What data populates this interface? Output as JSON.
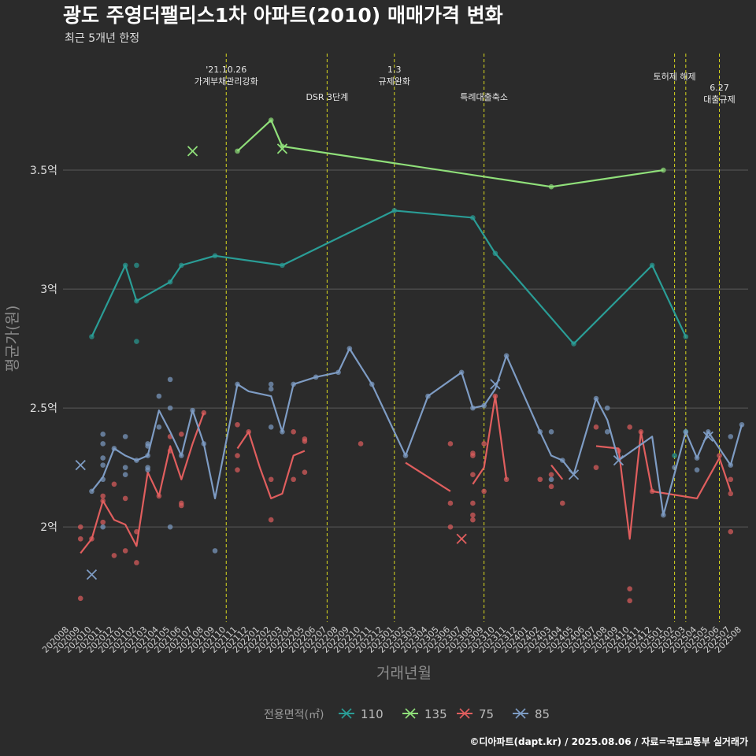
{
  "chart_data": {
    "type": "line",
    "title": "광도 주영더팰리스1차 아파트(2010) 매매가격 변화",
    "subtitle": "최근 5개년 한정",
    "xlabel": "거래년월",
    "ylabel": "평균가(원)",
    "ylim": [
      1.6,
      4.0
    ],
    "yticks": [
      2.0,
      2.5,
      3.0,
      3.5
    ],
    "ytick_labels": [
      "2억",
      "2.5억",
      "3억",
      "3.5억"
    ],
    "categories": [
      "202008",
      "202009",
      "202010",
      "202011",
      "202012",
      "202101",
      "202102",
      "202103",
      "202104",
      "202105",
      "202106",
      "202107",
      "202108",
      "202109",
      "202110",
      "202111",
      "202112",
      "202201",
      "202202",
      "202203",
      "202204",
      "202205",
      "202206",
      "202207",
      "202208",
      "202209",
      "202210",
      "202211",
      "202212",
      "202301",
      "202302",
      "202303",
      "202304",
      "202305",
      "202306",
      "202307",
      "202308",
      "202309",
      "202310",
      "202311",
      "202312",
      "202401",
      "202402",
      "202403",
      "202404",
      "202405",
      "202406",
      "202407",
      "202408",
      "202409",
      "202410",
      "202411",
      "202412",
      "202501",
      "202502",
      "202503",
      "202504",
      "202505",
      "202506",
      "202507",
      "202508"
    ],
    "grid": true,
    "legend_position": "bottom",
    "legend_title": "전용면적(㎡)",
    "events": [
      {
        "x": "202110",
        "label": "'21.10.26\n가계부채관리강화",
        "row": 0
      },
      {
        "x": "202207",
        "label": "DSR 3단계",
        "row": 2
      },
      {
        "x": "202301",
        "label": "1.3\n규제완화",
        "row": 0
      },
      {
        "x": "202309",
        "label": "특례대출축소",
        "row": 2
      },
      {
        "x": "202502",
        "label": "토허제 해제",
        "row": 1
      },
      {
        "x": "202503",
        "label": "",
        "row": 1
      },
      {
        "x": "202506",
        "label": "6.27\n대출규제",
        "row": 2
      }
    ],
    "series": [
      {
        "name": "110",
        "color": "#2a9d96",
        "line": [
          [
            "202010",
            2.8
          ],
          [
            "202101",
            3.1
          ],
          [
            "202102",
            2.95
          ],
          [
            "202105",
            3.03
          ],
          [
            "202106",
            3.1
          ],
          [
            "202109",
            3.14
          ],
          [
            "202203",
            3.1
          ],
          [
            "202301",
            3.33
          ],
          [
            "202308",
            3.3
          ],
          [
            "202310",
            3.15
          ],
          [
            "202405",
            2.77
          ],
          [
            "202412",
            3.1
          ],
          [
            "202503",
            2.8
          ]
        ],
        "points": [
          [
            "202010",
            2.8
          ],
          [
            "202101",
            3.1
          ],
          [
            "202102",
            3.1
          ],
          [
            "202102",
            2.78
          ],
          [
            "202102",
            2.95
          ],
          [
            "202105",
            3.03
          ],
          [
            "202106",
            3.1
          ],
          [
            "202109",
            3.14
          ],
          [
            "202203",
            3.1
          ],
          [
            "202301",
            3.33
          ],
          [
            "202308",
            3.3
          ],
          [
            "202310",
            3.15
          ],
          [
            "202405",
            2.77
          ],
          [
            "202412",
            3.1
          ],
          [
            "202503",
            2.8
          ],
          [
            "202502",
            2.3
          ],
          [
            "202503",
            2.4
          ]
        ],
        "x_marks": []
      },
      {
        "name": "135",
        "color": "#90e07a",
        "line": [
          [
            "202111",
            3.58
          ],
          [
            "202202",
            3.71
          ],
          [
            "202203",
            3.6
          ],
          [
            "202403",
            3.43
          ],
          [
            "202501",
            3.5
          ]
        ],
        "points": [
          [
            "202111",
            3.58
          ],
          [
            "202202",
            3.71
          ],
          [
            "202203",
            3.6
          ],
          [
            "202403",
            3.43
          ],
          [
            "202501",
            3.5
          ]
        ],
        "x_marks": [
          [
            "202107",
            3.58
          ],
          [
            "202203",
            3.59
          ]
        ]
      },
      {
        "name": "75",
        "color": "#e05e5e",
        "line": [
          [
            "202009",
            1.89
          ],
          [
            "202010",
            1.95
          ],
          [
            "202011",
            2.11
          ],
          [
            "202012",
            2.03
          ],
          [
            "202101",
            2.01
          ],
          [
            "202102",
            1.92
          ],
          [
            "202103",
            2.23
          ],
          [
            "202104",
            2.13
          ],
          [
            "202105",
            2.34
          ],
          [
            "202106",
            2.2
          ],
          [
            "202107",
            2.35
          ],
          [
            "202108",
            2.48
          ],
          null,
          [
            "202111",
            2.33
          ],
          [
            "202112",
            2.4
          ],
          [
            "202201",
            2.25
          ],
          [
            "202202",
            2.12
          ],
          [
            "202203",
            2.14
          ],
          [
            "202204",
            2.3
          ],
          [
            "202205",
            2.32
          ],
          null,
          [
            "202302",
            2.27
          ],
          [
            "202306",
            2.15
          ],
          null,
          [
            "202308",
            2.18
          ],
          [
            "202309",
            2.25
          ],
          [
            "202310",
            2.55
          ],
          [
            "202311",
            2.2
          ],
          null,
          [
            "202403",
            2.26
          ],
          [
            "202404",
            2.2
          ],
          null,
          [
            "202407",
            2.34
          ],
          [
            "202409",
            2.33
          ],
          [
            "202410",
            1.95
          ],
          [
            "202411",
            2.4
          ],
          [
            "202412",
            2.15
          ],
          [
            "202504",
            2.12
          ],
          [
            "202506",
            2.29
          ],
          [
            "202507",
            2.15
          ]
        ],
        "points": [
          [
            "202009",
            2.0
          ],
          [
            "202009",
            1.95
          ],
          [
            "202009",
            1.7
          ],
          [
            "202010",
            1.95
          ],
          [
            "202011",
            2.13
          ],
          [
            "202011",
            2.11
          ],
          [
            "202011",
            2.02
          ],
          [
            "202012",
            2.18
          ],
          [
            "202012",
            1.88
          ],
          [
            "202101",
            2.12
          ],
          [
            "202101",
            1.9
          ],
          [
            "202102",
            1.85
          ],
          [
            "202102",
            1.98
          ],
          [
            "202104",
            2.13
          ],
          [
            "202105",
            2.38
          ],
          [
            "202105",
            2.32
          ],
          [
            "202106",
            2.39
          ],
          [
            "202106",
            2.1
          ],
          [
            "202106",
            2.09
          ],
          [
            "202108",
            2.48
          ],
          [
            "202111",
            2.43
          ],
          [
            "202111",
            2.3
          ],
          [
            "202111",
            2.24
          ],
          [
            "202112",
            2.4
          ],
          [
            "202202",
            2.2
          ],
          [
            "202202",
            2.03
          ],
          [
            "202204",
            2.4
          ],
          [
            "202204",
            2.2
          ],
          [
            "202205",
            2.37
          ],
          [
            "202205",
            2.36
          ],
          [
            "202205",
            2.23
          ],
          [
            "202210",
            2.35
          ],
          [
            "202306",
            2.35
          ],
          [
            "202306",
            2.1
          ],
          [
            "202306",
            2.0
          ],
          [
            "202308",
            2.31
          ],
          [
            "202308",
            2.3
          ],
          [
            "202308",
            2.22
          ],
          [
            "202308",
            2.1
          ],
          [
            "202308",
            2.05
          ],
          [
            "202308",
            2.03
          ],
          [
            "202309",
            2.35
          ],
          [
            "202309",
            2.15
          ],
          [
            "202310",
            2.55
          ],
          [
            "202311",
            2.2
          ],
          [
            "202402",
            2.2
          ],
          [
            "202403",
            2.22
          ],
          [
            "202403",
            2.17
          ],
          [
            "202404",
            2.1
          ],
          [
            "202407",
            2.42
          ],
          [
            "202407",
            2.25
          ],
          [
            "202409",
            2.32
          ],
          [
            "202410",
            2.42
          ],
          [
            "202410",
            1.74
          ],
          [
            "202410",
            1.69
          ],
          [
            "202411",
            2.4
          ],
          [
            "202412",
            2.15
          ],
          [
            "202506",
            2.3
          ],
          [
            "202507",
            2.2
          ],
          [
            "202507",
            2.14
          ],
          [
            "202507",
            1.98
          ]
        ],
        "x_marks": [
          [
            "202307",
            1.95
          ]
        ]
      },
      {
        "name": "85",
        "color": "#7e9cc4",
        "line": [
          [
            "202010",
            2.15
          ],
          [
            "202011",
            2.21
          ],
          [
            "202012",
            2.33
          ],
          [
            "202101",
            2.3
          ],
          [
            "202102",
            2.28
          ],
          [
            "202103",
            2.3
          ],
          [
            "202104",
            2.49
          ],
          [
            "202105",
            2.4
          ],
          [
            "202106",
            2.3
          ],
          [
            "202107",
            2.49
          ],
          [
            "202108",
            2.35
          ],
          [
            "202109",
            2.12
          ],
          [
            "202111",
            2.6
          ],
          [
            "202112",
            2.57
          ],
          [
            "202202",
            2.55
          ],
          [
            "202203",
            2.4
          ],
          [
            "202204",
            2.6
          ],
          [
            "202206",
            2.63
          ],
          [
            "202208",
            2.65
          ],
          [
            "202209",
            2.75
          ],
          [
            "202211",
            2.6
          ],
          [
            "202302",
            2.3
          ],
          [
            "202304",
            2.55
          ],
          [
            "202307",
            2.65
          ],
          [
            "202308",
            2.5
          ],
          [
            "202309",
            2.51
          ],
          [
            "202310",
            2.58
          ],
          [
            "202311",
            2.72
          ],
          [
            "202402",
            2.4
          ],
          [
            "202403",
            2.3
          ],
          [
            "202404",
            2.28
          ],
          [
            "202405",
            2.22
          ],
          [
            "202407",
            2.54
          ],
          [
            "202408",
            2.45
          ],
          [
            "202409",
            2.28
          ],
          [
            "202412",
            2.38
          ],
          [
            "202501",
            2.05
          ],
          [
            "202503",
            2.4
          ],
          [
            "202504",
            2.29
          ],
          [
            "202505",
            2.4
          ],
          [
            "202507",
            2.26
          ],
          [
            "202508",
            2.43
          ]
        ],
        "points": [
          [
            "202010",
            2.15
          ],
          [
            "202011",
            2.39
          ],
          [
            "202011",
            2.35
          ],
          [
            "202011",
            2.29
          ],
          [
            "202011",
            2.26
          ],
          [
            "202011",
            2.2
          ],
          [
            "202011",
            2.0
          ],
          [
            "202012",
            2.33
          ],
          [
            "202101",
            2.38
          ],
          [
            "202101",
            2.25
          ],
          [
            "202101",
            2.22
          ],
          [
            "202102",
            2.28
          ],
          [
            "202103",
            2.35
          ],
          [
            "202103",
            2.34
          ],
          [
            "202103",
            2.3
          ],
          [
            "202103",
            2.25
          ],
          [
            "202103",
            2.24
          ],
          [
            "202104",
            2.55
          ],
          [
            "202104",
            2.42
          ],
          [
            "202105",
            2.62
          ],
          [
            "202105",
            2.5
          ],
          [
            "202105",
            2.0
          ],
          [
            "202106",
            2.3
          ],
          [
            "202107",
            2.49
          ],
          [
            "202108",
            2.35
          ],
          [
            "202109",
            1.9
          ],
          [
            "202111",
            2.6
          ],
          [
            "202202",
            2.6
          ],
          [
            "202202",
            2.58
          ],
          [
            "202202",
            2.42
          ],
          [
            "202203",
            2.4
          ],
          [
            "202204",
            2.6
          ],
          [
            "202206",
            2.63
          ],
          [
            "202208",
            2.65
          ],
          [
            "202209",
            2.75
          ],
          [
            "202211",
            2.6
          ],
          [
            "202302",
            2.3
          ],
          [
            "202304",
            2.55
          ],
          [
            "202307",
            2.65
          ],
          [
            "202308",
            2.5
          ],
          [
            "202309",
            2.51
          ],
          [
            "202311",
            2.72
          ],
          [
            "202402",
            2.4
          ],
          [
            "202403",
            2.4
          ],
          [
            "202403",
            2.2
          ],
          [
            "202404",
            2.28
          ],
          [
            "202407",
            2.54
          ],
          [
            "202408",
            2.5
          ],
          [
            "202408",
            2.4
          ],
          [
            "202501",
            2.05
          ],
          [
            "202502",
            2.25
          ],
          [
            "202503",
            2.4
          ],
          [
            "202504",
            2.29
          ],
          [
            "202504",
            2.24
          ],
          [
            "202505",
            2.4
          ],
          [
            "202507",
            2.38
          ],
          [
            "202507",
            2.26
          ],
          [
            "202508",
            2.43
          ]
        ],
        "x_marks": [
          [
            "202009",
            2.26
          ],
          [
            "202010",
            1.8
          ],
          [
            "202310",
            2.6
          ],
          [
            "202405",
            2.22
          ],
          [
            "202409",
            2.28
          ],
          [
            "202505",
            2.38
          ]
        ]
      }
    ]
  },
  "caption": "©디아파트(dapt.kr) / 2025.08.06 / 자료=국토교통부 실거래가"
}
